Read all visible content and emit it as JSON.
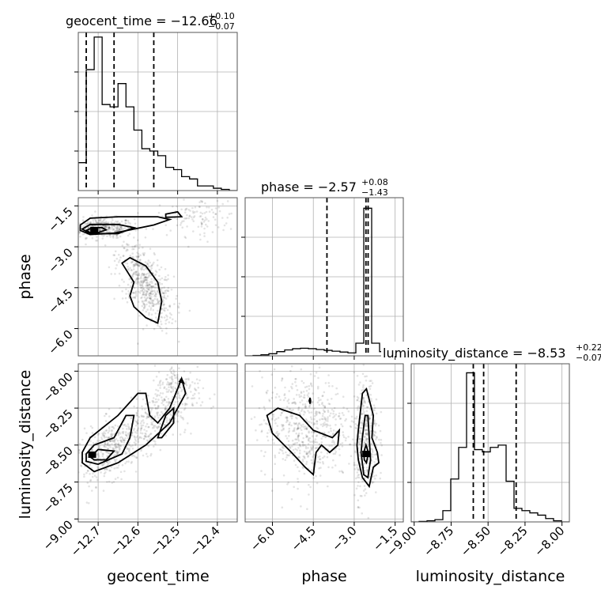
{
  "chart_data": {
    "type": "corner",
    "parameters": [
      {
        "name": "geocent_time",
        "label": "geocent_time",
        "range": [
          -12.75,
          -12.35
        ],
        "median": "−12.66",
        "plus": "+0.10",
        "minus": "−0.07",
        "quantiles": [
          -12.73,
          -12.66,
          -12.56
        ],
        "ticks": [
          -12.7,
          -12.6,
          -12.5,
          -12.4
        ],
        "tick_labels": [
          "−12.7",
          "−12.6",
          "−12.5",
          "−12.4"
        ],
        "hist_edges": [
          -12.75,
          -12.73,
          -12.71,
          -12.69,
          -12.67,
          -12.65,
          -12.63,
          -12.61,
          -12.59,
          -12.57,
          -12.55,
          -12.53,
          -12.51,
          -12.49,
          -12.47,
          -12.45,
          -12.43,
          -12.41,
          -12.39,
          -12.37,
          -12.35
        ],
        "hist_values": [
          0.12,
          0.52,
          0.66,
          0.37,
          0.36,
          0.46,
          0.36,
          0.26,
          0.18,
          0.17,
          0.15,
          0.1,
          0.09,
          0.06,
          0.05,
          0.02,
          0.02,
          0.01,
          0.005,
          0.0
        ],
        "hist_ymax": 0.68
      },
      {
        "name": "phase",
        "label": "phase",
        "range": [
          -7.0,
          -1.2
        ],
        "median": "−2.57",
        "plus": "+0.08",
        "minus": "−1.43",
        "quantiles": [
          -4.0,
          -2.57,
          -2.49
        ],
        "ticks": [
          -6.0,
          -4.5,
          -3.0,
          -1.5
        ],
        "tick_labels": [
          "−6.0",
          "−4.5",
          "−3.0",
          "−1.5"
        ],
        "hist_edges": [
          -7.0,
          -6.71,
          -6.42,
          -6.13,
          -5.84,
          -5.55,
          -5.26,
          -4.97,
          -4.68,
          -4.39,
          -4.1,
          -3.81,
          -3.52,
          -3.23,
          -2.94,
          -2.65,
          -2.36,
          -2.07,
          -1.78,
          -1.49,
          -1.2
        ],
        "hist_values": [
          0.0,
          0.002,
          0.005,
          0.01,
          0.02,
          0.028,
          0.034,
          0.036,
          0.034,
          0.03,
          0.026,
          0.022,
          0.018,
          0.014,
          0.06,
          0.7,
          0.06,
          0.02,
          0.008,
          0.002
        ],
        "hist_ymax": 0.75
      },
      {
        "name": "luminosity_distance",
        "label": "luminosity_distance",
        "range": [
          -9.02,
          -7.95
        ],
        "median": "−8.53",
        "plus": "+0.22",
        "minus": "−0.07",
        "quantiles": [
          -8.6,
          -8.53,
          -8.31
        ],
        "ticks": [
          -9.0,
          -8.75,
          -8.5,
          -8.25,
          -8.0
        ],
        "tick_labels": [
          "−9.00",
          "−8.75",
          "−8.50",
          "−8.25",
          "−8.00"
        ],
        "hist_edges": [
          -9.02,
          -8.9665,
          -8.913,
          -8.8595,
          -8.806,
          -8.7525,
          -8.699,
          -8.6455,
          -8.592,
          -8.5385,
          -8.485,
          -8.4315,
          -8.378,
          -8.3245,
          -8.271,
          -8.2175,
          -8.164,
          -8.1105,
          -8.057,
          -8.0035,
          -7.95
        ],
        "hist_values": [
          0.0,
          0.002,
          0.005,
          0.01,
          0.05,
          0.19,
          0.33,
          0.66,
          0.32,
          0.31,
          0.33,
          0.34,
          0.18,
          0.06,
          0.05,
          0.04,
          0.03,
          0.015,
          0.005,
          0.0
        ],
        "hist_ymax": 0.7
      }
    ],
    "pairs": [
      {
        "x": "geocent_time",
        "y": "phase",
        "contours": [
          {
            "level": "outer",
            "points": [
              [
                -12.745,
                -2.2
              ],
              [
                -12.72,
                -1.95
              ],
              [
                -12.65,
                -1.9
              ],
              [
                -12.55,
                -1.9
              ],
              [
                -12.52,
                -2.0
              ],
              [
                -12.56,
                -2.2
              ],
              [
                -12.66,
                -2.5
              ],
              [
                -12.72,
                -2.55
              ],
              [
                -12.745,
                -2.4
              ]
            ]
          },
          {
            "level": "outer",
            "points": [
              [
                -12.53,
                -1.8
              ],
              [
                -12.5,
                -1.72
              ],
              [
                -12.49,
                -1.9
              ],
              [
                -12.53,
                -1.92
              ]
            ]
          },
          {
            "level": "outer",
            "points": [
              [
                -12.64,
                -3.6
              ],
              [
                -12.62,
                -3.4
              ],
              [
                -12.58,
                -3.7
              ],
              [
                -12.55,
                -4.3
              ],
              [
                -12.54,
                -5.0
              ],
              [
                -12.55,
                -5.8
              ],
              [
                -12.58,
                -5.6
              ],
              [
                -12.61,
                -5.2
              ],
              [
                -12.62,
                -4.8
              ],
              [
                -12.61,
                -4.3
              ]
            ]
          },
          {
            "level": "middle",
            "points": [
              [
                -12.74,
                -2.35
              ],
              [
                -12.72,
                -2.18
              ],
              [
                -12.65,
                -2.18
              ],
              [
                -12.61,
                -2.3
              ],
              [
                -12.65,
                -2.52
              ],
              [
                -12.72,
                -2.52
              ]
            ]
          },
          {
            "level": "inner",
            "points": [
              [
                -12.73,
                -2.4
              ],
              [
                -12.715,
                -2.3
              ],
              [
                -12.69,
                -2.3
              ],
              [
                -12.68,
                -2.38
              ],
              [
                -12.7,
                -2.48
              ],
              [
                -12.72,
                -2.48
              ]
            ]
          }
        ],
        "peak": [
          -12.71,
          -2.39
        ]
      },
      {
        "x": "geocent_time",
        "y": "luminosity_distance",
        "contours": [
          {
            "level": "outer",
            "points": [
              [
                -12.74,
                -8.55
              ],
              [
                -12.72,
                -8.45
              ],
              [
                -12.65,
                -8.3
              ],
              [
                -12.6,
                -8.15
              ],
              [
                -12.58,
                -8.15
              ],
              [
                -12.57,
                -8.3
              ],
              [
                -12.55,
                -8.35
              ],
              [
                -12.52,
                -8.25
              ],
              [
                -12.5,
                -8.12
              ],
              [
                -12.49,
                -8.05
              ],
              [
                -12.48,
                -8.15
              ],
              [
                -12.52,
                -8.35
              ],
              [
                -12.58,
                -8.5
              ],
              [
                -12.65,
                -8.62
              ],
              [
                -12.71,
                -8.68
              ],
              [
                -12.74,
                -8.62
              ]
            ]
          },
          {
            "level": "middle",
            "points": [
              [
                -12.73,
                -8.56
              ],
              [
                -12.71,
                -8.5
              ],
              [
                -12.66,
                -8.45
              ],
              [
                -12.63,
                -8.3
              ],
              [
                -12.61,
                -8.3
              ],
              [
                -12.62,
                -8.45
              ],
              [
                -12.64,
                -8.56
              ],
              [
                -12.7,
                -8.63
              ],
              [
                -12.73,
                -8.61
              ]
            ]
          },
          {
            "level": "middle",
            "points": [
              [
                -12.55,
                -8.45
              ],
              [
                -12.53,
                -8.3
              ],
              [
                -12.51,
                -8.25
              ],
              [
                -12.51,
                -8.35
              ],
              [
                -12.54,
                -8.45
              ]
            ]
          },
          {
            "level": "inner",
            "points": [
              [
                -12.72,
                -8.58
              ],
              [
                -12.7,
                -8.53
              ],
              [
                -12.66,
                -8.54
              ],
              [
                -12.68,
                -8.6
              ],
              [
                -12.71,
                -8.6
              ]
            ]
          },
          {
            "level": "inner",
            "points": [
              [
                -12.495,
                -8.07
              ],
              [
                -12.49,
                -8.05
              ],
              [
                -12.485,
                -8.08
              ]
            ]
          }
        ],
        "peak": [
          -12.715,
          -8.565
        ]
      },
      {
        "x": "phase",
        "y": "luminosity_distance",
        "contours": [
          {
            "level": "outer",
            "points": [
              [
                -6.2,
                -8.3
              ],
              [
                -5.8,
                -8.25
              ],
              [
                -5.0,
                -8.3
              ],
              [
                -4.5,
                -8.4
              ],
              [
                -3.8,
                -8.45
              ],
              [
                -3.55,
                -8.4
              ],
              [
                -3.6,
                -8.5
              ],
              [
                -3.9,
                -8.55
              ],
              [
                -4.2,
                -8.5
              ],
              [
                -4.4,
                -8.55
              ],
              [
                -4.5,
                -8.7
              ],
              [
                -4.8,
                -8.65
              ],
              [
                -5.3,
                -8.55
              ],
              [
                -6.0,
                -8.42
              ]
            ]
          },
          {
            "level": "outer",
            "points": [
              [
                -2.85,
                -8.4
              ],
              [
                -2.7,
                -8.15
              ],
              [
                -2.55,
                -8.12
              ],
              [
                -2.3,
                -8.3
              ],
              [
                -2.35,
                -8.45
              ],
              [
                -2.15,
                -8.55
              ],
              [
                -2.1,
                -8.62
              ],
              [
                -2.3,
                -8.65
              ],
              [
                -2.45,
                -8.78
              ],
              [
                -2.7,
                -8.72
              ],
              [
                -2.85,
                -8.6
              ],
              [
                -2.9,
                -8.5
              ]
            ]
          },
          {
            "level": "middle",
            "points": [
              [
                -2.7,
                -8.45
              ],
              [
                -2.6,
                -8.3
              ],
              [
                -2.5,
                -8.3
              ],
              [
                -2.45,
                -8.45
              ],
              [
                -2.4,
                -8.6
              ],
              [
                -2.5,
                -8.72
              ],
              [
                -2.65,
                -8.7
              ],
              [
                -2.75,
                -8.55
              ]
            ]
          },
          {
            "level": "inner",
            "points": [
              [
                -2.65,
                -8.55
              ],
              [
                -2.57,
                -8.5
              ],
              [
                -2.48,
                -8.55
              ],
              [
                -2.55,
                -8.62
              ],
              [
                -2.63,
                -8.6
              ]
            ]
          },
          {
            "level": "inner",
            "points": [
              [
                -4.65,
                -8.2
              ],
              [
                -4.62,
                -8.18
              ],
              [
                -4.6,
                -8.2
              ],
              [
                -4.62,
                -8.22
              ]
            ]
          }
        ],
        "peak": [
          -2.56,
          -8.56
        ]
      }
    ],
    "grid": true
  }
}
